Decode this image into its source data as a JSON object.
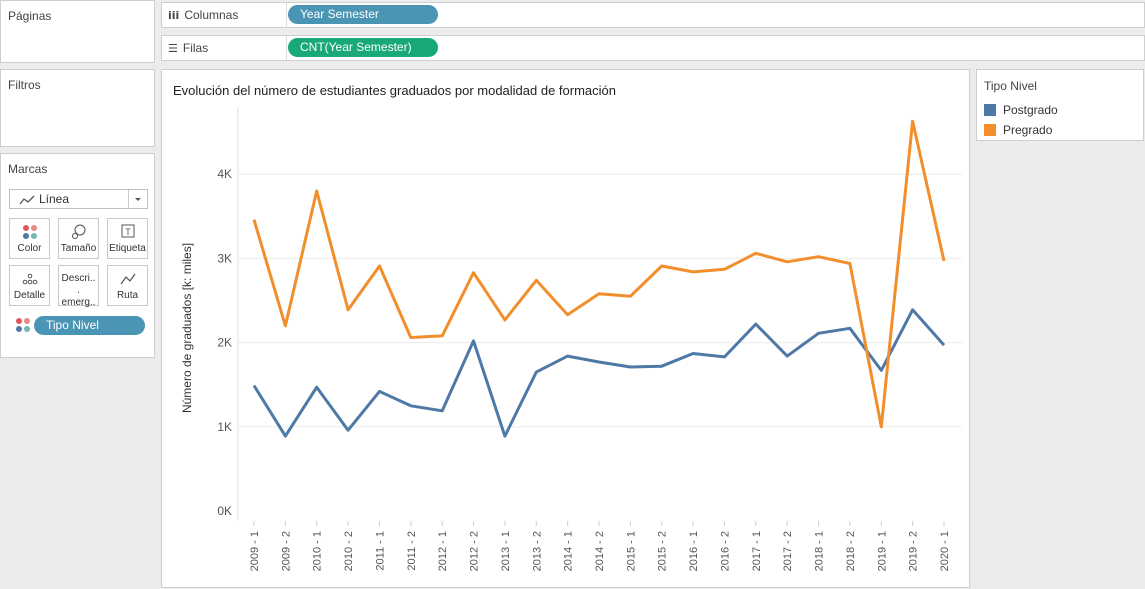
{
  "panels": {
    "paginas": "Páginas",
    "filtros": "Filtros",
    "marcas": "Marcas"
  },
  "marks": {
    "type": "Línea",
    "type_icon": "line-chart-icon",
    "cards": [
      {
        "label": "Color",
        "icon": "color-dots-icon"
      },
      {
        "label": "Tamaño",
        "icon": "size-icon"
      },
      {
        "label": "Etiqueta",
        "icon": "label-icon"
      },
      {
        "label": "Detalle",
        "icon": "detail-dots-icon"
      },
      {
        "label": "Descri... emerg...",
        "icon": "tooltip-icon"
      },
      {
        "label": "Ruta",
        "icon": "path-icon"
      }
    ],
    "color_field": "Tipo Nivel"
  },
  "shelves": {
    "columns": {
      "label": "Columnas",
      "pill": "Year Semester",
      "pill_color": "#4a94b4"
    },
    "rows": {
      "label": "Filas",
      "pill": "CNT(Year Semester)",
      "pill_color": "#18a87a"
    }
  },
  "legend": {
    "title": "Tipo Nivel",
    "items": [
      {
        "label": "Postgrado",
        "color": "#4e79a7"
      },
      {
        "label": "Pregrado",
        "color": "#f28e2b"
      }
    ]
  },
  "chart_data": {
    "type": "line",
    "title": "Evolución del número de estudiantes graduados por modalidad de formación",
    "ylabel": "Número de graduados [k: miles]",
    "xlabel": "",
    "ylim": [
      0,
      5000
    ],
    "yticks": [
      0,
      1000,
      2000,
      3000,
      4000
    ],
    "ytick_labels": [
      "0K",
      "1K",
      "2K",
      "3K",
      "4K"
    ],
    "grid": true,
    "categories": [
      "2009 - 1",
      "2009 - 2",
      "2010 - 1",
      "2010 - 2",
      "2011 - 1",
      "2011 - 2",
      "2012 - 1",
      "2012 - 2",
      "2013 - 1",
      "2013 - 2",
      "2014 - 1",
      "2014 - 2",
      "2015 - 1",
      "2015 - 2",
      "2016 - 1",
      "2016 - 2",
      "2017 - 1",
      "2017 - 2",
      "2018 - 1",
      "2018 - 2",
      "2019 - 1",
      "2019 - 2",
      "2020 - 1"
    ],
    "series": [
      {
        "name": "Postgrado",
        "color": "#4e79a7",
        "values": [
          1490,
          890,
          1470,
          960,
          1420,
          1250,
          1190,
          2020,
          890,
          1650,
          1840,
          1770,
          1710,
          1720,
          1870,
          1830,
          2220,
          1840,
          2110,
          2170,
          1670,
          2390,
          1970
        ]
      },
      {
        "name": "Pregrado",
        "color": "#f28e2b",
        "values": [
          3460,
          2200,
          3800,
          2390,
          2910,
          2060,
          2080,
          2830,
          2270,
          2740,
          2330,
          2580,
          2550,
          2910,
          2840,
          2870,
          3060,
          2960,
          3020,
          2940,
          1000,
          4630,
          2970
        ]
      }
    ]
  }
}
